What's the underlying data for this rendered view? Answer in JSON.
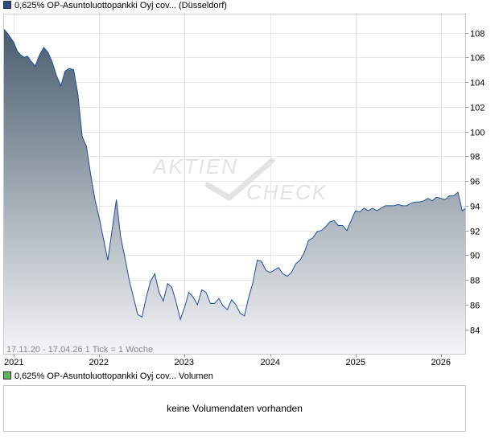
{
  "price_legend": {
    "label": "0,625% OP-Asuntoluottopankki Oyj cov... (Düsseldorf)",
    "color": "#2b4a8a"
  },
  "volume_legend": {
    "label": "0,625% OP-Asuntoluottopankki Oyj cov... Volumen",
    "color": "#5cb85c"
  },
  "watermark": {
    "line1": "AKTIEN",
    "line2": "CHECK"
  },
  "range_note": "17.11.20 - 17.04.26   1 Tick = 1 Woche",
  "volume_message": "keine Volumendaten vorhanden",
  "chart_data": {
    "type": "area",
    "title": "",
    "xlabel": "",
    "ylabel": "",
    "x_ticks": [
      "2021",
      "2022",
      "2023",
      "2024",
      "2025",
      "2026"
    ],
    "y_ticks": [
      84,
      86,
      88,
      90,
      92,
      94,
      96,
      98,
      100,
      102,
      104,
      106,
      108
    ],
    "xlim": [
      2020.88,
      2026.29
    ],
    "ylim": [
      82.0,
      109.5
    ],
    "grid": true,
    "line_color": "#1f4e9c",
    "fill_top_color": "#4a5d6e",
    "fill_bottom_color": "#f4f5f7",
    "series": [
      {
        "x": [
          2020.88,
          2020.92,
          2020.96,
          2021.0,
          2021.04,
          2021.08,
          2021.12,
          2021.16,
          2021.2,
          2021.25,
          2021.3,
          2021.35,
          2021.4,
          2021.45,
          2021.5,
          2021.55,
          2021.6,
          2021.65,
          2021.7,
          2021.75,
          2021.8,
          2021.85,
          2021.9,
          2021.95,
          2022.0,
          2022.05,
          2022.1,
          2022.15,
          2022.2,
          2022.25,
          2022.3,
          2022.35,
          2022.4,
          2022.45,
          2022.5,
          2022.55,
          2022.6,
          2022.65,
          2022.7,
          2022.75,
          2022.8,
          2022.85,
          2022.9,
          2022.95,
          2023.0,
          2023.05,
          2023.1,
          2023.15,
          2023.2,
          2023.25,
          2023.3,
          2023.35,
          2023.4,
          2023.45,
          2023.5,
          2023.55,
          2023.6,
          2023.65,
          2023.7,
          2023.75,
          2023.8,
          2023.85,
          2023.9,
          2023.95,
          2024.0,
          2024.05,
          2024.1,
          2024.15,
          2024.2,
          2024.25,
          2024.3,
          2024.35,
          2024.4,
          2024.45,
          2024.5,
          2024.55,
          2024.6,
          2024.65,
          2024.7,
          2024.75,
          2024.8,
          2024.85,
          2024.9,
          2024.95,
          2025.0,
          2025.05,
          2025.1,
          2025.15,
          2025.2,
          2025.25,
          2025.3,
          2025.35,
          2025.4,
          2025.45,
          2025.5,
          2025.55,
          2025.6,
          2025.65,
          2025.7,
          2025.75,
          2025.8,
          2025.85,
          2025.9,
          2025.95,
          2026.0,
          2026.05,
          2026.1,
          2026.15,
          2026.2,
          2026.25,
          2026.29
        ],
        "values": [
          108.3,
          108.0,
          107.6,
          107.2,
          106.5,
          106.2,
          106.0,
          106.1,
          105.7,
          105.3,
          106.2,
          106.8,
          106.4,
          105.6,
          104.5,
          103.7,
          104.9,
          105.1,
          105.0,
          103.0,
          99.6,
          98.8,
          96.5,
          94.5,
          93.0,
          91.3,
          89.6,
          92.0,
          94.5,
          91.5,
          89.8,
          88.0,
          86.6,
          85.2,
          85.0,
          86.6,
          87.9,
          88.5,
          87.0,
          86.3,
          87.7,
          87.4,
          86.2,
          84.8,
          85.8,
          87.0,
          86.6,
          86.0,
          87.2,
          87.0,
          86.1,
          86.1,
          86.5,
          85.9,
          85.6,
          86.4,
          86.0,
          85.3,
          85.1,
          86.6,
          87.8,
          89.6,
          89.5,
          88.8,
          88.6,
          88.8,
          89.0,
          88.5,
          88.3,
          88.6,
          89.3,
          89.6,
          90.2,
          91.2,
          91.4,
          91.9,
          92.0,
          92.3,
          92.7,
          92.8,
          92.4,
          92.4,
          92.0,
          92.8,
          93.6,
          93.5,
          93.8,
          93.6,
          93.8,
          93.6,
          93.8,
          94.0,
          94.0,
          94.0,
          94.1,
          94.0,
          94.0,
          94.2,
          94.3,
          94.3,
          94.4,
          94.6,
          94.4,
          94.7,
          94.6,
          94.5,
          94.8,
          94.8,
          95.1,
          93.6,
          93.8
        ]
      }
    ]
  }
}
